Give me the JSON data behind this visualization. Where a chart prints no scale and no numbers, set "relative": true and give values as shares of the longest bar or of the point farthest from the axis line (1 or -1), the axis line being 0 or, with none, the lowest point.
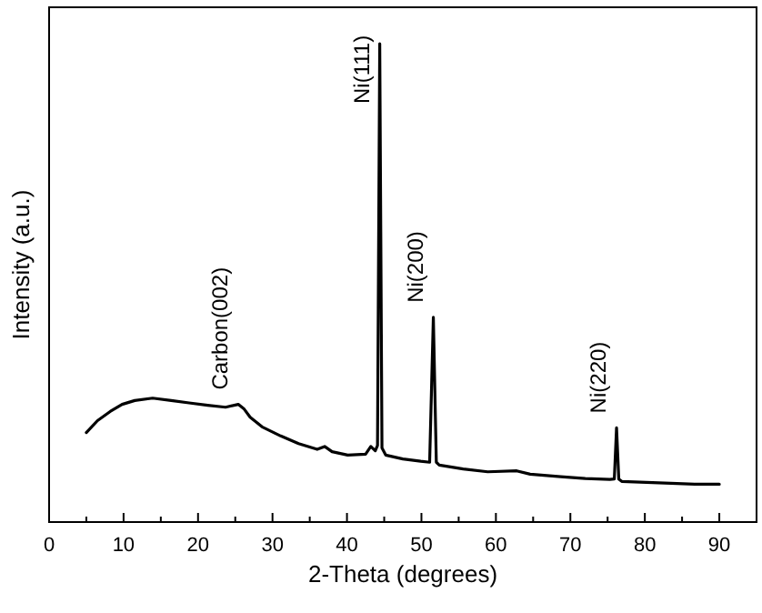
{
  "chart_data": {
    "type": "line",
    "relative": true,
    "xlabel": "2-Theta (degrees)",
    "ylabel": "Intensity (a.u.)",
    "xlim": [
      0,
      95
    ],
    "xticks": [
      0,
      {
        "value": 5,
        "label": null
      },
      10,
      {
        "value": 15,
        "label": null
      },
      20,
      {
        "value": 25,
        "label": null
      },
      30,
      {
        "value": 35,
        "label": null
      },
      40,
      {
        "value": 45,
        "label": null
      },
      50,
      {
        "value": 55,
        "label": null
      },
      60,
      {
        "value": 65,
        "label": null
      },
      70,
      {
        "value": 75,
        "label": null
      },
      80,
      {
        "value": 85,
        "label": null
      },
      90
    ],
    "series": [
      {
        "color": "#000000",
        "x": [
          5,
          6.5,
          8.2,
          9.8,
          11.5,
          13.9,
          16.4,
          18.8,
          21.3,
          23.7,
          25.4,
          26.2,
          27,
          28.6,
          31.1,
          33.5,
          36,
          37,
          38,
          40.1,
          42.5,
          43.2,
          43.8,
          44.1,
          44.4,
          44.7,
          45.2,
          47.5,
          49.9,
          51.1,
          51.6,
          52,
          52.4,
          55.6,
          58.9,
          62.8,
          64.6,
          68.7,
          72,
          75.3,
          75.9,
          76.2,
          76.5,
          76.9,
          80.2,
          83.5,
          86.7,
          90
        ],
        "values": [
          0.187,
          0.212,
          0.231,
          0.246,
          0.254,
          0.259,
          0.254,
          0.249,
          0.244,
          0.24,
          0.246,
          0.236,
          0.219,
          0.199,
          0.18,
          0.164,
          0.152,
          0.158,
          0.147,
          0.14,
          0.142,
          0.158,
          0.149,
          0.16,
          1,
          0.155,
          0.14,
          0.132,
          0.127,
          0.125,
          0.428,
          0.125,
          0.119,
          0.111,
          0.105,
          0.107,
          0.1,
          0.095,
          0.091,
          0.089,
          0.09,
          0.197,
          0.09,
          0.085,
          0.083,
          0.081,
          0.079,
          0.079
        ]
      }
    ],
    "annotations": [
      {
        "text": "Carbon(002)",
        "x": 25.4,
        "y": 0.246
      },
      {
        "text": "Ni(111)",
        "x": 44.4,
        "y": 1
      },
      {
        "text": "Ni(200)",
        "x": 51.6,
        "y": 0.428
      },
      {
        "text": "Ni(220)",
        "x": 76.2,
        "y": 0.197
      }
    ]
  }
}
